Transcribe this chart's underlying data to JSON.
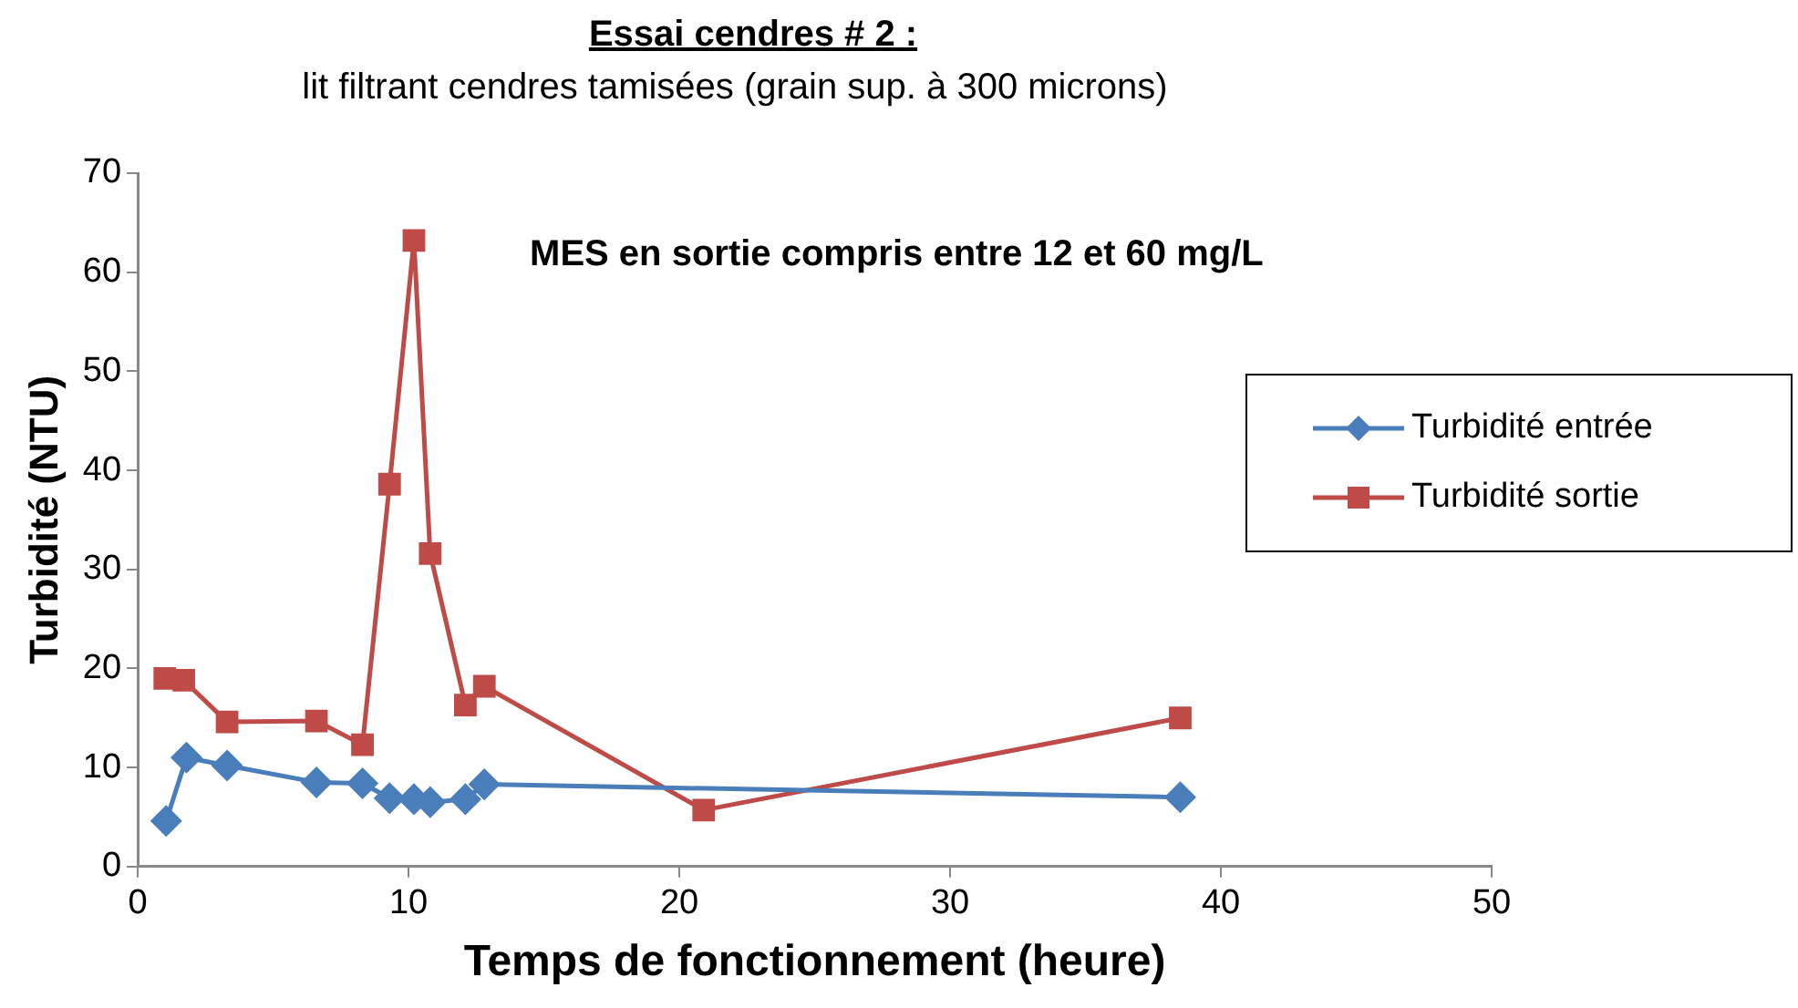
{
  "chart_data": {
    "type": "line",
    "title": "Essai cendres # 2 :",
    "subtitle": "lit filtrant  cendres tamisées (grain sup. à 300 microns)",
    "xlabel": "Temps de fonctionnement (heure)",
    "ylabel": "Turbidité (NTU)",
    "annotations": [
      "MES en sortie compris entre 12 et 60 mg/L"
    ],
    "x": [
      1.05,
      1.8,
      3.3,
      6.6,
      8.3,
      9.3,
      10.2,
      10.8,
      12.1,
      12.8,
      38.5
    ],
    "series": [
      {
        "name": "Turbidité entrée",
        "color": "#4a7ebb",
        "marker": "diamond",
        "values": [
          4.6,
          11,
          10.2,
          8.5,
          8.4,
          6.9,
          6.8,
          6.5,
          6.8,
          8.3,
          7.0
        ]
      },
      {
        "name": "Turbidité sortie",
        "color": "#be4b48",
        "marker": "square",
        "x": [
          1.0,
          1.7,
          3.3,
          6.6,
          8.3,
          9.3,
          10.2,
          10.8,
          12.1,
          12.8,
          20.9,
          38.5
        ],
        "values": [
          19,
          18.8,
          14.6,
          14.7,
          12.3,
          38.6,
          63.2,
          31.6,
          16.3,
          18.2,
          5.7,
          15
        ]
      }
    ],
    "xlim": [
      0,
      50
    ],
    "xticks": [
      0,
      10,
      20,
      30,
      40,
      50
    ],
    "ylim": [
      0,
      70
    ],
    "yticks": [
      0,
      10,
      20,
      30,
      40,
      50,
      60,
      70
    ],
    "legend": "right",
    "line_style": "solid"
  }
}
